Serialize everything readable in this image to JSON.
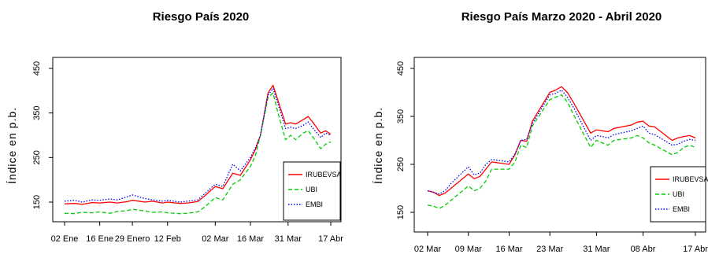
{
  "colors": {
    "IRUBEVSA": "#ff0000",
    "UBI": "#00cc00",
    "EMBI": "#0000ff"
  },
  "chart_data": [
    {
      "type": "line",
      "title": "Riesgo País 2020",
      "ylabel": "Índice en p.b.",
      "x_range": [
        "2020-01-02",
        "2020-04-17"
      ],
      "ylim": [
        150,
        450
      ],
      "y_ticks": [
        150,
        250,
        350,
        450
      ],
      "x_ticks": [
        {
          "date": "2020-01-02",
          "label": "02 Ene"
        },
        {
          "date": "2020-01-16",
          "label": "16 Ene"
        },
        {
          "date": "2020-01-29",
          "label": "29 Enero"
        },
        {
          "date": "2020-02-12",
          "label": "12 Feb"
        },
        {
          "date": "2020-03-02",
          "label": "02 Mar"
        },
        {
          "date": "2020-03-16",
          "label": "16 Mar"
        },
        {
          "date": "2020-03-31",
          "label": "31 Mar"
        },
        {
          "date": "2020-04-17",
          "label": "17 Abr"
        }
      ],
      "legend_position": "bottom-right",
      "series": [
        {
          "name": "IRUBEVSA",
          "style": "solid",
          "points": [
            [
              "2020-01-02",
              146
            ],
            [
              "2020-01-06",
              147
            ],
            [
              "2020-01-09",
              145
            ],
            [
              "2020-01-13",
              149
            ],
            [
              "2020-01-16",
              148
            ],
            [
              "2020-01-20",
              150
            ],
            [
              "2020-01-23",
              148
            ],
            [
              "2020-01-27",
              151
            ],
            [
              "2020-01-29",
              154
            ],
            [
              "2020-02-03",
              150
            ],
            [
              "2020-02-06",
              152
            ],
            [
              "2020-02-10",
              148
            ],
            [
              "2020-02-12",
              150
            ],
            [
              "2020-02-17",
              147
            ],
            [
              "2020-02-20",
              148
            ],
            [
              "2020-02-24",
              151
            ],
            [
              "2020-02-27",
              165
            ],
            [
              "2020-03-02",
              185
            ],
            [
              "2020-03-05",
              180
            ],
            [
              "2020-03-09",
              215
            ],
            [
              "2020-03-12",
              210
            ],
            [
              "2020-03-16",
              245
            ],
            [
              "2020-03-18",
              268
            ],
            [
              "2020-03-20",
              300
            ],
            [
              "2020-03-23",
              395
            ],
            [
              "2020-03-25",
              412
            ],
            [
              "2020-03-27",
              378
            ],
            [
              "2020-03-30",
              325
            ],
            [
              "2020-04-01",
              328
            ],
            [
              "2020-04-03",
              325
            ],
            [
              "2020-04-06",
              335
            ],
            [
              "2020-04-08",
              342
            ],
            [
              "2020-04-10",
              328
            ],
            [
              "2020-04-13",
              305
            ],
            [
              "2020-04-15",
              310
            ],
            [
              "2020-04-17",
              302
            ]
          ]
        },
        {
          "name": "UBI",
          "style": "dashed",
          "points": [
            [
              "2020-01-02",
              125
            ],
            [
              "2020-01-06",
              124
            ],
            [
              "2020-01-09",
              127
            ],
            [
              "2020-01-13",
              126
            ],
            [
              "2020-01-16",
              128
            ],
            [
              "2020-01-20",
              125
            ],
            [
              "2020-01-23",
              129
            ],
            [
              "2020-01-27",
              131
            ],
            [
              "2020-01-29",
              134
            ],
            [
              "2020-02-03",
              130
            ],
            [
              "2020-02-06",
              127
            ],
            [
              "2020-02-10",
              128
            ],
            [
              "2020-02-12",
              126
            ],
            [
              "2020-02-17",
              124
            ],
            [
              "2020-02-20",
              125
            ],
            [
              "2020-02-24",
              128
            ],
            [
              "2020-02-27",
              140
            ],
            [
              "2020-03-02",
              160
            ],
            [
              "2020-03-05",
              155
            ],
            [
              "2020-03-09",
              190
            ],
            [
              "2020-03-12",
              200
            ],
            [
              "2020-03-16",
              230
            ],
            [
              "2020-03-18",
              255
            ],
            [
              "2020-03-20",
              300
            ],
            [
              "2020-03-23",
              385
            ],
            [
              "2020-03-25",
              395
            ],
            [
              "2020-03-27",
              350
            ],
            [
              "2020-03-30",
              290
            ],
            [
              "2020-04-01",
              300
            ],
            [
              "2020-04-03",
              290
            ],
            [
              "2020-04-06",
              305
            ],
            [
              "2020-04-08",
              310
            ],
            [
              "2020-04-10",
              295
            ],
            [
              "2020-04-13",
              270
            ],
            [
              "2020-04-15",
              280
            ],
            [
              "2020-04-17",
              285
            ]
          ]
        },
        {
          "name": "EMBI",
          "style": "dotted",
          "points": [
            [
              "2020-01-02",
              152
            ],
            [
              "2020-01-06",
              154
            ],
            [
              "2020-01-09",
              150
            ],
            [
              "2020-01-13",
              155
            ],
            [
              "2020-01-16",
              154
            ],
            [
              "2020-01-20",
              157
            ],
            [
              "2020-01-23",
              155
            ],
            [
              "2020-01-27",
              162
            ],
            [
              "2020-01-29",
              166
            ],
            [
              "2020-02-03",
              158
            ],
            [
              "2020-02-06",
              155
            ],
            [
              "2020-02-10",
              152
            ],
            [
              "2020-02-12",
              154
            ],
            [
              "2020-02-17",
              150
            ],
            [
              "2020-02-20",
              152
            ],
            [
              "2020-02-24",
              155
            ],
            [
              "2020-02-27",
              170
            ],
            [
              "2020-03-02",
              190
            ],
            [
              "2020-03-05",
              185
            ],
            [
              "2020-03-09",
              235
            ],
            [
              "2020-03-12",
              220
            ],
            [
              "2020-03-16",
              250
            ],
            [
              "2020-03-18",
              272
            ],
            [
              "2020-03-20",
              300
            ],
            [
              "2020-03-23",
              390
            ],
            [
              "2020-03-25",
              405
            ],
            [
              "2020-03-27",
              370
            ],
            [
              "2020-03-30",
              315
            ],
            [
              "2020-04-01",
              318
            ],
            [
              "2020-04-03",
              315
            ],
            [
              "2020-04-06",
              322
            ],
            [
              "2020-04-08",
              330
            ],
            [
              "2020-04-10",
              315
            ],
            [
              "2020-04-13",
              295
            ],
            [
              "2020-04-15",
              305
            ],
            [
              "2020-04-17",
              300
            ]
          ]
        }
      ]
    },
    {
      "type": "line",
      "title": "Riesgo País Marzo 2020 - Abril 2020",
      "ylabel": "Índice en p.b.",
      "x_range": [
        "2020-03-02",
        "2020-04-17"
      ],
      "ylim": [
        150,
        450
      ],
      "y_ticks": [
        150,
        250,
        350,
        450
      ],
      "x_ticks": [
        {
          "date": "2020-03-02",
          "label": "02 Mar"
        },
        {
          "date": "2020-03-09",
          "label": "09 Mar"
        },
        {
          "date": "2020-03-16",
          "label": "16 Mar"
        },
        {
          "date": "2020-03-23",
          "label": "23 Mar"
        },
        {
          "date": "2020-03-31",
          "label": "31 Mar"
        },
        {
          "date": "2020-04-08",
          "label": "08 Abr"
        },
        {
          "date": "2020-04-17",
          "label": "17 Abr"
        }
      ],
      "legend_position": "bottom-right",
      "series": [
        {
          "name": "IRUBEVSA",
          "style": "solid",
          "points": [
            [
              "2020-03-02",
              195
            ],
            [
              "2020-03-03",
              192
            ],
            [
              "2020-03-04",
              185
            ],
            [
              "2020-03-05",
              190
            ],
            [
              "2020-03-06",
              200
            ],
            [
              "2020-03-09",
              230
            ],
            [
              "2020-03-10",
              220
            ],
            [
              "2020-03-11",
              225
            ],
            [
              "2020-03-12",
              240
            ],
            [
              "2020-03-13",
              255
            ],
            [
              "2020-03-16",
              250
            ],
            [
              "2020-03-17",
              270
            ],
            [
              "2020-03-18",
              300
            ],
            [
              "2020-03-19",
              298
            ],
            [
              "2020-03-20",
              340
            ],
            [
              "2020-03-23",
              400
            ],
            [
              "2020-03-24",
              405
            ],
            [
              "2020-03-25",
              412
            ],
            [
              "2020-03-26",
              400
            ],
            [
              "2020-03-27",
              380
            ],
            [
              "2020-03-30",
              315
            ],
            [
              "2020-03-31",
              322
            ],
            [
              "2020-04-01",
              320
            ],
            [
              "2020-04-02",
              318
            ],
            [
              "2020-04-03",
              325
            ],
            [
              "2020-04-06",
              332
            ],
            [
              "2020-04-07",
              338
            ],
            [
              "2020-04-08",
              340
            ],
            [
              "2020-04-09",
              330
            ],
            [
              "2020-04-10",
              328
            ],
            [
              "2020-04-13",
              300
            ],
            [
              "2020-04-14",
              305
            ],
            [
              "2020-04-15",
              308
            ],
            [
              "2020-04-16",
              310
            ],
            [
              "2020-04-17",
              305
            ]
          ]
        },
        {
          "name": "UBI",
          "style": "dashed",
          "points": [
            [
              "2020-03-02",
              165
            ],
            [
              "2020-03-03",
              163
            ],
            [
              "2020-03-04",
              158
            ],
            [
              "2020-03-05",
              165
            ],
            [
              "2020-03-06",
              175
            ],
            [
              "2020-03-09",
              205
            ],
            [
              "2020-03-10",
              195
            ],
            [
              "2020-03-11",
              200
            ],
            [
              "2020-03-12",
              215
            ],
            [
              "2020-03-13",
              240
            ],
            [
              "2020-03-16",
              240
            ],
            [
              "2020-03-17",
              255
            ],
            [
              "2020-03-18",
              290
            ],
            [
              "2020-03-19",
              285
            ],
            [
              "2020-03-20",
              330
            ],
            [
              "2020-03-23",
              385
            ],
            [
              "2020-03-24",
              390
            ],
            [
              "2020-03-25",
              395
            ],
            [
              "2020-03-26",
              380
            ],
            [
              "2020-03-27",
              355
            ],
            [
              "2020-03-30",
              285
            ],
            [
              "2020-03-31",
              300
            ],
            [
              "2020-04-01",
              295
            ],
            [
              "2020-04-02",
              290
            ],
            [
              "2020-04-03",
              300
            ],
            [
              "2020-04-06",
              305
            ],
            [
              "2020-04-07",
              310
            ],
            [
              "2020-04-08",
              305
            ],
            [
              "2020-04-09",
              295
            ],
            [
              "2020-04-10",
              290
            ],
            [
              "2020-04-13",
              270
            ],
            [
              "2020-04-14",
              275
            ],
            [
              "2020-04-15",
              285
            ],
            [
              "2020-04-16",
              290
            ],
            [
              "2020-04-17",
              285
            ]
          ]
        },
        {
          "name": "EMBI",
          "style": "dotted",
          "points": [
            [
              "2020-03-02",
              195
            ],
            [
              "2020-03-03",
              192
            ],
            [
              "2020-03-04",
              188
            ],
            [
              "2020-03-05",
              195
            ],
            [
              "2020-03-06",
              210
            ],
            [
              "2020-03-09",
              245
            ],
            [
              "2020-03-10",
              228
            ],
            [
              "2020-03-11",
              232
            ],
            [
              "2020-03-12",
              250
            ],
            [
              "2020-03-13",
              260
            ],
            [
              "2020-03-16",
              255
            ],
            [
              "2020-03-17",
              272
            ],
            [
              "2020-03-18",
              300
            ],
            [
              "2020-03-19",
              302
            ],
            [
              "2020-03-20",
              335
            ],
            [
              "2020-03-23",
              395
            ],
            [
              "2020-03-24",
              398
            ],
            [
              "2020-03-25",
              405
            ],
            [
              "2020-03-26",
              390
            ],
            [
              "2020-03-27",
              370
            ],
            [
              "2020-03-30",
              300
            ],
            [
              "2020-03-31",
              310
            ],
            [
              "2020-04-01",
              308
            ],
            [
              "2020-04-02",
              305
            ],
            [
              "2020-04-03",
              312
            ],
            [
              "2020-04-06",
              320
            ],
            [
              "2020-04-07",
              325
            ],
            [
              "2020-04-08",
              330
            ],
            [
              "2020-04-09",
              315
            ],
            [
              "2020-04-10",
              312
            ],
            [
              "2020-04-13",
              290
            ],
            [
              "2020-04-14",
              292
            ],
            [
              "2020-04-15",
              298
            ],
            [
              "2020-04-16",
              302
            ],
            [
              "2020-04-17",
              300
            ]
          ]
        }
      ]
    }
  ]
}
